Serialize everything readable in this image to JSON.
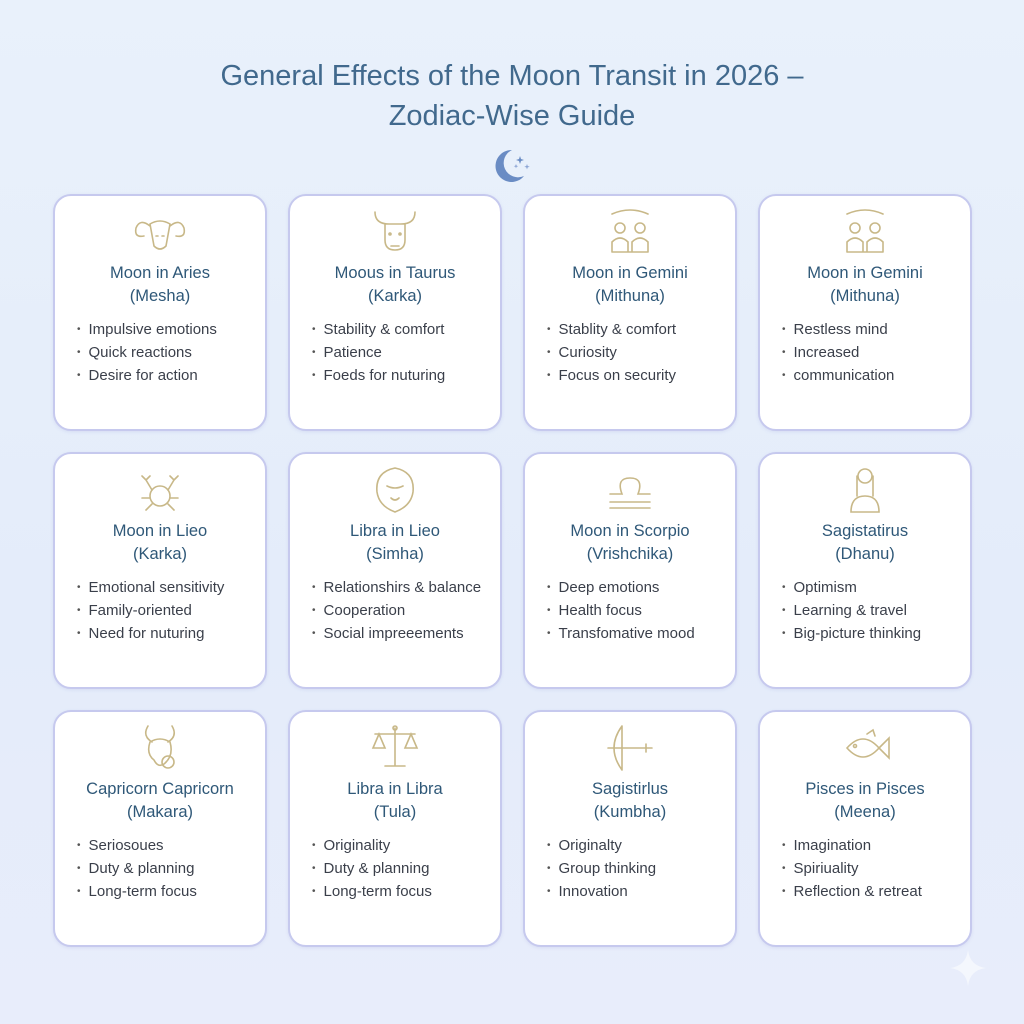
{
  "title_line1": "General Effects of the Moon Transit in 2026 –",
  "title_line2": "Zodiac-Wise Guide",
  "colors": {
    "title": "#41698d",
    "card_title": "#2f5878",
    "icon_gold": "#c8b888",
    "card_border": "#c6c9ee"
  },
  "cards": [
    {
      "icon": "ram-icon",
      "title": "Moon in Aries",
      "subtitle": "(Mesha)",
      "bullets": [
        "Impulsive emotions",
        "Quick reactions",
        "Desire for action"
      ]
    },
    {
      "icon": "bull-icon",
      "title": "Moous in Taurus",
      "subtitle": "(Karka)",
      "bullets": [
        "Stability & comfort",
        "Patience",
        "Foeds for nuturing"
      ]
    },
    {
      "icon": "twins-icon",
      "title": "Moon in Gemini",
      "subtitle": "(Mithuna)",
      "bullets": [
        "Stablity & comfort",
        "Curiosity",
        "Focus on security"
      ]
    },
    {
      "icon": "twins-icon",
      "title": "Moon in Gemini",
      "subtitle": "(Mithuna)",
      "bullets": [
        "Restless mind",
        "Increased",
        "communication"
      ]
    },
    {
      "icon": "crab-icon",
      "title": "Moon in Lieo",
      "subtitle": "(Karka)",
      "bullets": [
        "Emotional sensitivity",
        "Family-oriented",
        "Need for nuturing"
      ]
    },
    {
      "icon": "lion-icon",
      "title": "Libra in Lieo",
      "subtitle": "(Simha)",
      "bullets": [
        "Relationshirs & balance",
        "Cooperation",
        "Social impreeements"
      ]
    },
    {
      "icon": "libra-symbol-icon",
      "title": "Moon in Scorpio",
      "subtitle": "(Vrishchika)",
      "bullets": [
        "Deep emotions",
        "Health focus",
        "Transfomative mood"
      ]
    },
    {
      "icon": "maiden-icon",
      "title": "Sagistatirus",
      "subtitle": "(Dhanu)",
      "bullets": [
        "Optimism",
        "Learning & travel",
        "Big-picture thinking"
      ]
    },
    {
      "icon": "goat-icon",
      "title": "Capricorn Capricorn",
      "subtitle": "(Makara)",
      "bullets": [
        "Seriosoues",
        "Duty & planning",
        "Long-term focus"
      ]
    },
    {
      "icon": "scales-icon",
      "title": "Libra in Libra",
      "subtitle": "(Tula)",
      "bullets": [
        "Originality",
        "Duty & planning",
        "Long-term focus"
      ]
    },
    {
      "icon": "bow-arrow-icon",
      "title": "Sagistirlus",
      "subtitle": "(Kumbha)",
      "bullets": [
        "Originalty",
        "Group thinking",
        "Innovation"
      ]
    },
    {
      "icon": "fish-icon",
      "title": "Pisces in Pisces",
      "subtitle": "(Meena)",
      "bullets": [
        "Imagination",
        "Spiriuality",
        "Reflection & retreat"
      ]
    }
  ]
}
